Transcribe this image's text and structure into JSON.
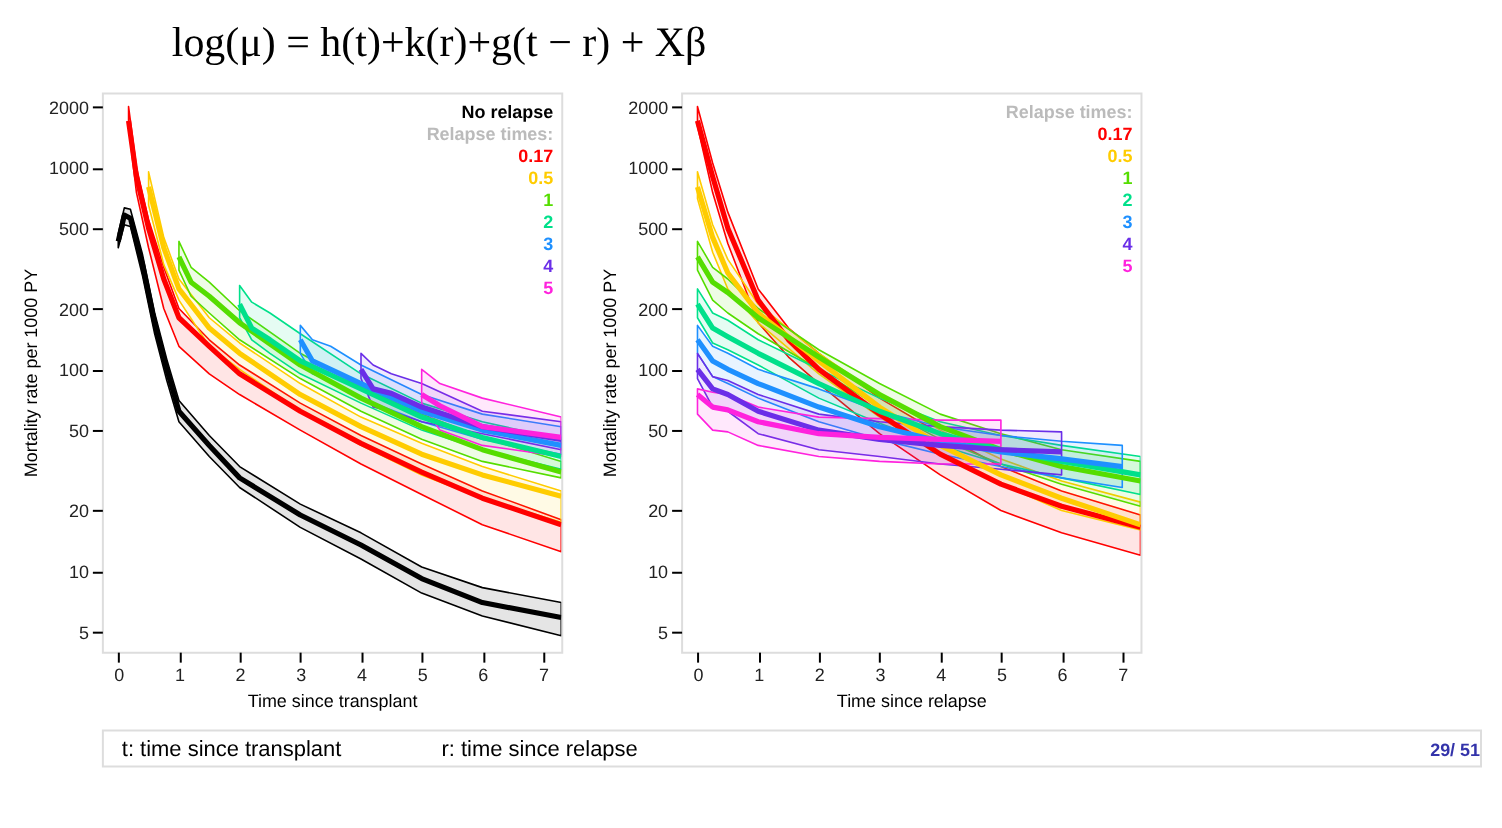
{
  "chart_data": [
    {
      "type": "line",
      "title": "log(μ) = h(t)+k(r)+g(t − r) + Xβ",
      "xlabel": "Time since transplant",
      "ylabel": "Mortality rate per 1000 PY",
      "legend_title": "Relapse times:",
      "legend": "top right",
      "log": "y",
      "grid": false,
      "marker": "none",
      "line_style": "solid",
      "xlim": [
        -0.27,
        7.3
      ],
      "xticks": [
        0,
        1,
        2,
        3,
        4,
        5,
        6,
        7
      ],
      "ylim": [
        4,
        2350
      ],
      "yticks": [
        5,
        10,
        20,
        50,
        100,
        200,
        500,
        1000,
        2000
      ],
      "annotations": [
        "t: time since transplant",
        "r: time since relapse",
        "29/ 51"
      ],
      "series": [
        {
          "name": "No relapse",
          "color": "#000000",
          "x": [
            0,
            0.1,
            0.2,
            0.4,
            0.6,
            0.8,
            1,
            1.5,
            2,
            3,
            4,
            5,
            6,
            7.3
          ],
          "values": [
            430,
            580,
            560,
            330,
            170,
            100,
            62,
            42,
            29,
            19,
            13.5,
            9.2,
            7,
            5.9
          ],
          "lower": [
            400,
            520,
            510,
            290,
            150,
            88,
            55,
            37,
            26,
            16.5,
            11.5,
            7.8,
            6,
            4.8
          ],
          "upper": [
            470,
            630,
            620,
            370,
            190,
            112,
            70,
            47,
            33,
            21.5,
            15.5,
            10.5,
            8.3,
            7
          ]
        },
        {
          "name": "0.17",
          "color": "#ff0000",
          "x": [
            0.17,
            0.3,
            0.5,
            0.75,
            1,
            1.5,
            2,
            3,
            4,
            5,
            6,
            7.3
          ],
          "values": [
            1700,
            900,
            500,
            280,
            180,
            130,
            95,
            62,
            43,
            31,
            23,
            17
          ],
          "lower": [
            1600,
            750,
            400,
            200,
            130,
            95,
            75,
            50,
            34,
            24,
            17,
            12.5
          ],
          "upper": [
            2000,
            1000,
            550,
            320,
            200,
            140,
            105,
            68,
            47,
            34,
            25,
            18
          ]
        },
        {
          "name": "0.5",
          "color": "#ffcc00",
          "x": [
            0.5,
            0.75,
            1,
            1.5,
            2,
            3,
            4,
            5,
            6,
            7.3
          ],
          "values": [
            800,
            400,
            250,
            160,
            120,
            75,
            52,
            38,
            30,
            23.5
          ],
          "lower": [
            650,
            330,
            220,
            130,
            100,
            62,
            42,
            30,
            23,
            17.5
          ],
          "upper": [
            950,
            450,
            280,
            180,
            135,
            85,
            58,
            43,
            33,
            25
          ]
        },
        {
          "name": "1",
          "color": "#55dd00",
          "x": [
            1,
            1.2,
            1.5,
            2,
            3,
            4,
            5,
            6,
            7.3
          ],
          "values": [
            360,
            270,
            230,
            170,
            105,
            72,
            52,
            40,
            31
          ],
          "lower": [
            310,
            230,
            190,
            140,
            90,
            62,
            45,
            35,
            29
          ],
          "upper": [
            430,
            320,
            270,
            195,
            120,
            82,
            60,
            46,
            35
          ]
        },
        {
          "name": "2",
          "color": "#00e08a",
          "x": [
            2,
            2.2,
            2.5,
            3,
            4,
            5,
            6,
            7.3
          ],
          "values": [
            210,
            160,
            140,
            110,
            80,
            58,
            46,
            37
          ],
          "lower": [
            180,
            140,
            120,
            95,
            68,
            50,
            40,
            32
          ],
          "upper": [
            260,
            215,
            190,
            150,
            95,
            68,
            55,
            45
          ]
        },
        {
          "name": "3",
          "color": "#1e90ff",
          "x": [
            3,
            3.2,
            3.5,
            4,
            5,
            6,
            7.3
          ],
          "values": [
            140,
            110,
            100,
            85,
            62,
            50,
            42
          ],
          "lower": [
            120,
            95,
            88,
            72,
            55,
            45,
            38
          ],
          "upper": [
            165,
            140,
            130,
            105,
            75,
            60,
            52
          ]
        },
        {
          "name": "4",
          "color": "#6a2ee8",
          "x": [
            4,
            4.2,
            4.5,
            5,
            6,
            7.3
          ],
          "values": [
            100,
            80,
            76,
            65,
            52,
            45
          ],
          "lower": [
            90,
            65,
            62,
            55,
            48,
            40
          ],
          "upper": [
            120,
            105,
            95,
            85,
            62,
            55
          ]
        },
        {
          "name": "5",
          "color": "#ff22dd",
          "x": [
            5,
            5.3,
            6,
            7.3
          ],
          "values": [
            75,
            66,
            52,
            46
          ],
          "lower": [
            68,
            50,
            42,
            37
          ],
          "upper": [
            100,
            85,
            72,
            58
          ]
        }
      ]
    },
    {
      "type": "line",
      "xlabel": "Time since relapse",
      "ylabel": "Mortality rate per 1000 PY",
      "legend_title": "Relapse times:",
      "legend": "top right",
      "log": "y",
      "grid": false,
      "marker": "none",
      "line_style": "solid",
      "xlim": [
        -0.27,
        7.3
      ],
      "xticks": [
        0,
        1,
        2,
        3,
        4,
        5,
        6,
        7
      ],
      "ylim": [
        4,
        2350
      ],
      "yticks": [
        5,
        10,
        20,
        50,
        100,
        200,
        500,
        1000,
        2000
      ],
      "series": [
        {
          "name": "0.17",
          "color": "#ff0000",
          "x": [
            0,
            0.25,
            0.5,
            1,
            1.5,
            2,
            3,
            4,
            5,
            6,
            7.3
          ],
          "values": [
            1700,
            900,
            500,
            220,
            140,
            100,
            60,
            38,
            27,
            21,
            16.5
          ],
          "lower": [
            1600,
            750,
            420,
            170,
            115,
            85,
            48,
            30,
            20,
            15.5,
            12
          ],
          "upper": [
            2000,
            1050,
            600,
            250,
            160,
            120,
            72,
            48,
            33,
            25,
            19
          ]
        },
        {
          "name": "0.5",
          "color": "#ffcc00",
          "x": [
            0,
            0.25,
            0.5,
            1,
            2,
            3,
            4,
            5,
            6,
            7.3
          ],
          "values": [
            800,
            450,
            300,
            190,
            110,
            65,
            42,
            30,
            23,
            17
          ],
          "lower": [
            700,
            380,
            250,
            170,
            95,
            58,
            38,
            27,
            20,
            16
          ],
          "upper": [
            950,
            520,
            350,
            210,
            120,
            75,
            50,
            36,
            28,
            22
          ]
        },
        {
          "name": "1",
          "color": "#55dd00",
          "x": [
            0,
            0.25,
            0.5,
            1,
            2,
            3,
            4,
            5,
            6,
            7.3
          ],
          "values": [
            360,
            270,
            240,
            180,
            115,
            75,
            52,
            40,
            33,
            28
          ],
          "lower": [
            310,
            220,
            190,
            150,
            100,
            65,
            45,
            34,
            27,
            21
          ],
          "upper": [
            430,
            320,
            280,
            200,
            125,
            85,
            60,
            48,
            40,
            35
          ]
        },
        {
          "name": "2",
          "color": "#00e08a",
          "x": [
            0,
            0.25,
            0.5,
            1,
            2,
            3,
            4,
            5,
            6,
            7.3
          ],
          "values": [
            210,
            160,
            145,
            120,
            85,
            62,
            48,
            40,
            35,
            30
          ],
          "lower": [
            180,
            135,
            125,
            105,
            72,
            54,
            42,
            34,
            29,
            24
          ],
          "upper": [
            250,
            190,
            175,
            140,
            100,
            72,
            55,
            47,
            42,
            37
          ]
        },
        {
          "name": "3",
          "color": "#1e90ff",
          "x": [
            0,
            0.25,
            0.5,
            1,
            2,
            3,
            4,
            5,
            6,
            7
          ],
          "values": [
            140,
            110,
            100,
            85,
            65,
            52,
            44,
            39,
            36,
            33
          ],
          "lower": [
            120,
            92,
            85,
            72,
            55,
            45,
            38,
            33,
            29,
            26
          ],
          "upper": [
            165,
            130,
            120,
            100,
            80,
            62,
            52,
            47,
            44,
            42
          ]
        },
        {
          "name": "4",
          "color": "#6a2ee8",
          "x": [
            0,
            0.25,
            0.5,
            1,
            2,
            3,
            4,
            5,
            6
          ],
          "values": [
            100,
            80,
            75,
            62,
            50,
            45,
            42,
            40,
            39
          ],
          "lower": [
            90,
            65,
            62,
            48,
            40,
            37,
            34,
            32,
            30
          ],
          "upper": [
            120,
            92,
            88,
            75,
            60,
            55,
            52,
            50,
            49
          ]
        },
        {
          "name": "5",
          "color": "#ff22dd",
          "x": [
            0,
            0.25,
            0.5,
            1,
            2,
            3,
            4,
            5
          ],
          "values": [
            75,
            65,
            63,
            55,
            48,
            46,
            45,
            44
          ],
          "lower": [
            60,
            50,
            49,
            42,
            37,
            35,
            34,
            34
          ],
          "upper": [
            80,
            77,
            75,
            65,
            58,
            57,
            56,
            56
          ]
        }
      ]
    }
  ]
}
